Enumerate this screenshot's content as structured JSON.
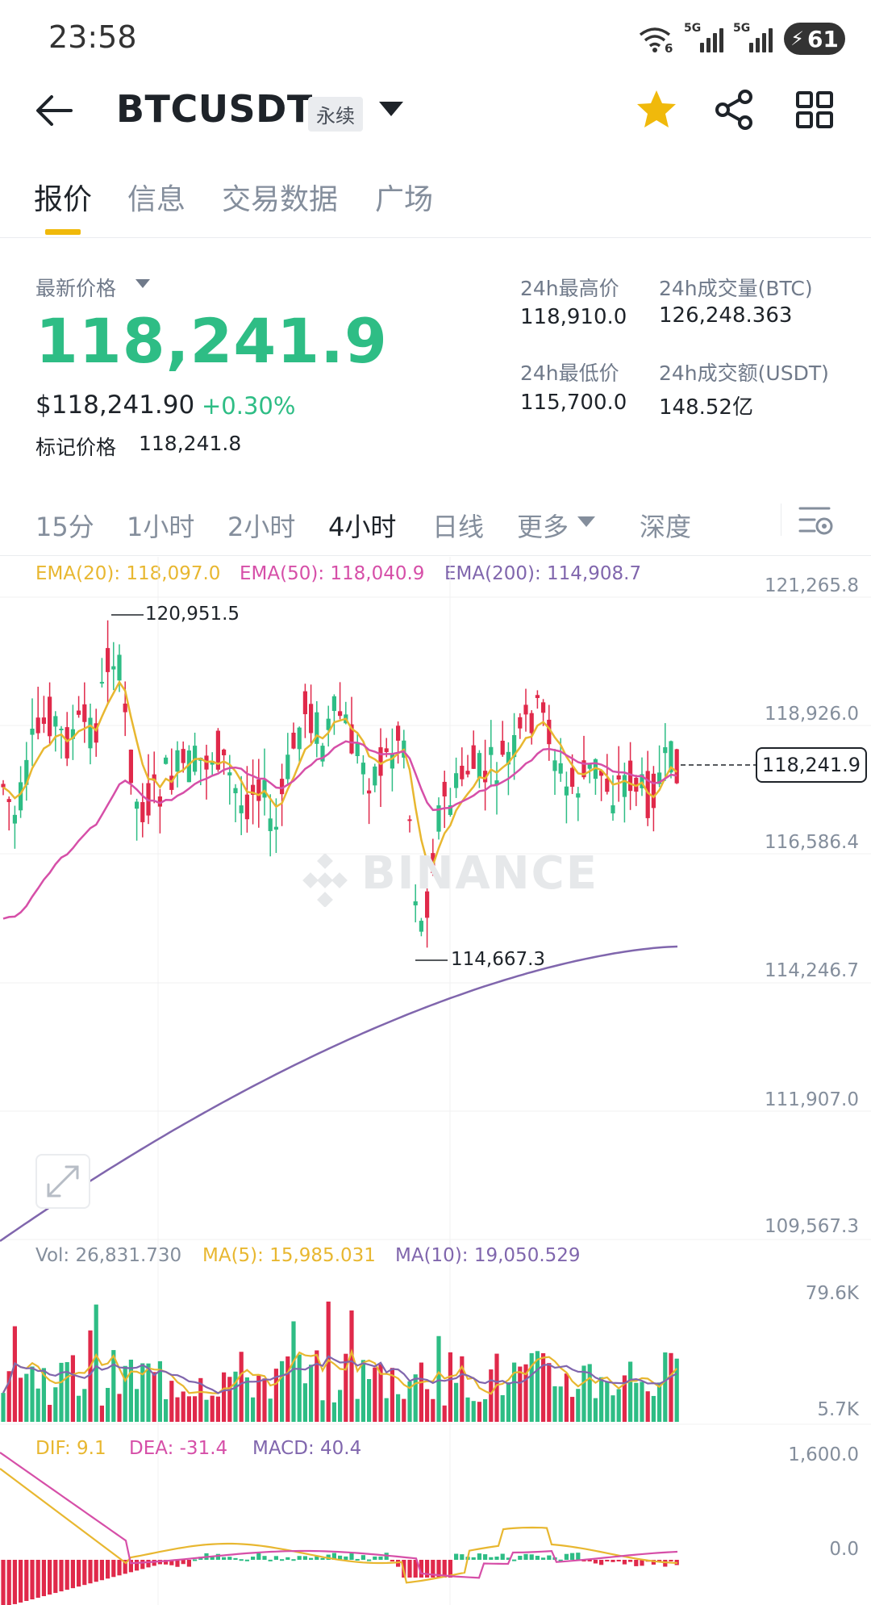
{
  "status_bar": {
    "time": "23:58",
    "wifi_badge": "6",
    "signal1_label": "5G",
    "signal2_label": "5G",
    "battery": "61"
  },
  "header": {
    "symbol": "BTCUSDT",
    "badge": "永续",
    "icons": [
      "back-arrow-icon",
      "star-icon",
      "share-icon",
      "grid-icon"
    ],
    "star_color": "#f0b90b"
  },
  "tabs": [
    "报价",
    "信息",
    "交易数据",
    "广场"
  ],
  "price": {
    "last_label": "最新价格",
    "last": "118,241.9",
    "usd": "$118,241.90",
    "change": "+0.30%",
    "mark_label": "标记价格",
    "mark": "118,241.8",
    "color_up": "#2ebd85"
  },
  "stats": {
    "high_label": "24h最高价",
    "high": "118,910.0",
    "low_label": "24h最低价",
    "low": "115,700.0",
    "vol_btc_label": "24h成交量(BTC)",
    "vol_btc": "126,248.363",
    "vol_usdt_label": "24h成交额(USDT)",
    "vol_usdt": "148.52亿"
  },
  "intervals": {
    "items": [
      "15分",
      "1小时",
      "2小时",
      "4小时",
      "日线",
      "更多",
      "深度"
    ],
    "selected": "4小时"
  },
  "main_chart": {
    "ema20_label": "EMA(20): 118,097.0",
    "ema50_label": "EMA(50): 118,040.9",
    "ema200_label": "EMA(200): 114,908.7",
    "axis_labels": [
      "121,265.8",
      "118,926.0",
      "116,586.4",
      "114,246.7",
      "111,907.0",
      "109,567.3"
    ],
    "high_marker": "120,951.5",
    "low_marker": "114,667.3",
    "current_price": "118,241.9",
    "watermark": "BINANCE",
    "colors": {
      "up": "#2ebd85",
      "down": "#e0294a",
      "ema20": "#e8b730",
      "ema50": "#d64fa8",
      "ema200": "#8066ad"
    }
  },
  "volume_chart": {
    "vol_label": "Vol: 26,831.730",
    "ma5_label": "MA(5): 15,985.031",
    "ma10_label": "MA(10): 19,050.529",
    "axis_labels": [
      "79.6K",
      "5.7K"
    ]
  },
  "macd_chart": {
    "dif_label": "DIF: 9.1",
    "dea_label": "DEA: -31.4",
    "macd_label": "MACD: 40.4",
    "axis_labels": [
      "1,600.0",
      "0.0"
    ]
  }
}
